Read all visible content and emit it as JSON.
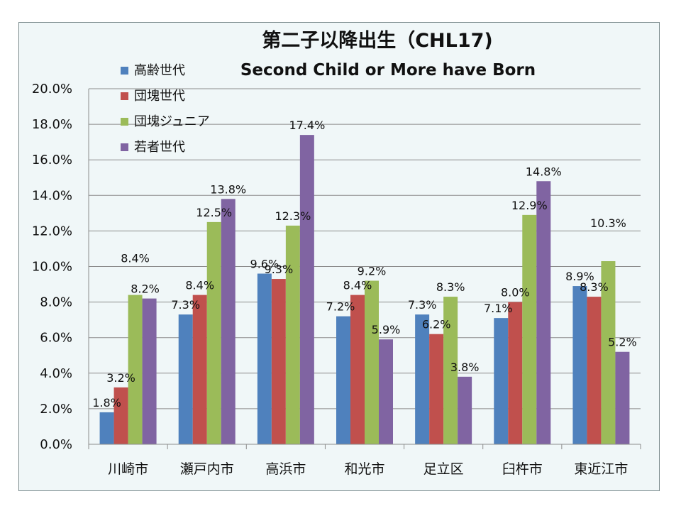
{
  "chart_data": {
    "type": "bar",
    "title": "第二子以降出生（CHL17)",
    "subtitle": "Second Child or More have Born",
    "xlabel": "",
    "ylabel": "",
    "ylim": [
      0,
      20
    ],
    "y_ticks": [
      "0.0%",
      "2.0%",
      "4.0%",
      "6.0%",
      "8.0%",
      "10.0%",
      "12.0%",
      "14.0%",
      "16.0%",
      "18.0%",
      "20.0%"
    ],
    "grid": true,
    "legend_position": "top-left",
    "categories": [
      "川崎市",
      "瀬戸内市",
      "高浜市",
      "和光市",
      "足立区",
      "臼杵市",
      "東近江市"
    ],
    "series": [
      {
        "name": "高齢世代",
        "color": "#4f81bd",
        "values": [
          1.8,
          7.3,
          9.6,
          7.2,
          7.3,
          7.1,
          8.9
        ],
        "labels": [
          "1.8%",
          "7.3%",
          "9.6%",
          "7.2%",
          "7.3%",
          "7.1%",
          "8.9%"
        ]
      },
      {
        "name": "団塊世代",
        "color": "#c0504d",
        "values": [
          3.2,
          8.4,
          9.3,
          8.4,
          6.2,
          8.0,
          8.3
        ],
        "labels": [
          "3.2%",
          "8.4%",
          "9.3%",
          "8.4%",
          "6.2%",
          "8.0%",
          "8.3%"
        ]
      },
      {
        "name": "団塊ジュニア",
        "color": "#9bbb59",
        "values": [
          8.4,
          12.5,
          12.3,
          9.2,
          8.3,
          12.9,
          10.3
        ],
        "labels": [
          "8.4%",
          "12.5%",
          "12.3%",
          "9.2%",
          "8.3%",
          "12.9%",
          "10.3%"
        ]
      },
      {
        "name": "若者世代",
        "color": "#8064a2",
        "values": [
          8.2,
          13.8,
          17.4,
          5.9,
          3.8,
          14.8,
          5.2
        ],
        "labels": [
          "8.2%",
          "13.8%",
          "17.4%",
          "5.9%",
          "3.8%",
          "14.8%",
          "5.2%"
        ]
      }
    ]
  },
  "colors": {
    "frame_background": "#f0f7f8",
    "frame_border": "#7a8a8c",
    "grid": "#8c8c8c"
  }
}
